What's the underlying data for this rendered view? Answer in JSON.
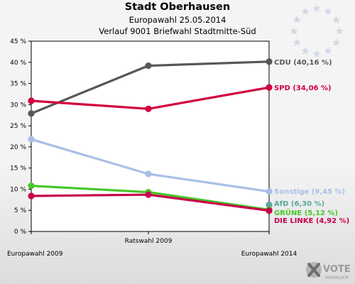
{
  "header": {
    "title": "Stadt Oberhausen",
    "subtitle": "Europawahl 25.05.2014",
    "subtitle2": "Verlauf 9001 Briefwahl Stadtmitte-Süd"
  },
  "logo": {
    "text": "VOTE",
    "subtext": "MANAGER"
  },
  "colors": {
    "CDU": "#575757",
    "SPD": "#d1003e",
    "Sonstige": "#a8bfe8",
    "AfD": "#5aa89a",
    "GRÜNE": "#47c72a",
    "DIE LINKE": "#c8004c"
  },
  "chart_data": {
    "type": "line",
    "title": "Verlauf 9001 Briefwahl Stadtmitte-Süd",
    "xlabel": "",
    "ylabel": "",
    "x": [
      "Europawahl 2009",
      "Ratswahl 2009",
      "Europawahl 2014"
    ],
    "ylim": [
      0,
      45
    ],
    "yticks": [
      "0 %",
      "5 %",
      "10 %",
      "15 %",
      "20 %",
      "25 %",
      "30 %",
      "35 %",
      "40 %",
      "45 %"
    ],
    "grid": false,
    "series": [
      {
        "name": "CDU",
        "values": [
          27.9,
          39.2,
          40.16
        ],
        "label": "CDU (40,16 %)"
      },
      {
        "name": "SPD",
        "values": [
          30.9,
          29.0,
          34.06
        ],
        "label": "SPD (34,06 %)"
      },
      {
        "name": "Sonstige",
        "values": [
          21.8,
          13.6,
          9.45
        ],
        "label": "Sonstige (9,45 %)"
      },
      {
        "name": "AfD",
        "values": [
          null,
          null,
          6.3
        ],
        "label": "AfD (6,30 %)"
      },
      {
        "name": "GRÜNE",
        "values": [
          10.8,
          9.3,
          5.12
        ],
        "label": "GRÜNE (5,12 %)"
      },
      {
        "name": "DIE LINKE",
        "values": [
          8.4,
          8.7,
          4.92
        ],
        "label": "DIE LINKE (4,92 %)"
      }
    ]
  }
}
